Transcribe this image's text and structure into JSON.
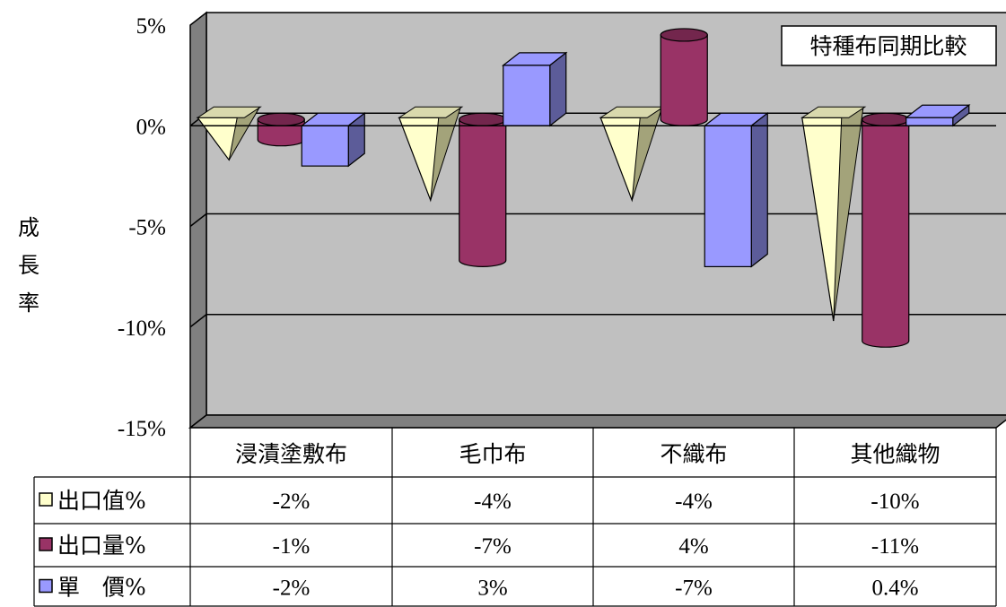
{
  "chart_data": {
    "type": "bar",
    "title": "特種布同期比較",
    "ylabel": "成長率",
    "ylabel_chars": [
      "成",
      "長",
      "率"
    ],
    "ylim": [
      -15,
      5
    ],
    "yticks": [
      5,
      0,
      -5,
      -10,
      -15
    ],
    "ytick_labels": [
      "5%",
      "0%",
      "-5%",
      "-10%",
      "-15%"
    ],
    "gridlines": true,
    "legend_placement": "data-table",
    "categories": [
      "浸漬塗敷布",
      "毛巾布",
      "不織布",
      "其他織物"
    ],
    "series": [
      {
        "name": "出口值%",
        "legend_label": "出口值%",
        "shape": "cone",
        "color": "#ffffcc",
        "values": [
          -1.7,
          -3.7,
          -3.7,
          -9.7
        ],
        "labels": [
          "-2%",
          "-4%",
          "-4%",
          "-10%"
        ]
      },
      {
        "name": "出口量%",
        "legend_label": "出口量%",
        "shape": "cylinder",
        "color": "#993366",
        "values": [
          -1.0,
          -7.0,
          4.2,
          -11.0
        ],
        "labels": [
          "-1%",
          "-7%",
          "4%",
          "-11%"
        ]
      },
      {
        "name": "單價%",
        "legend_label": "單　價%",
        "shape": "box",
        "color": "#9999ff",
        "values": [
          -2.0,
          3.0,
          -7.0,
          0.4
        ],
        "labels": [
          "-2%",
          "3%",
          "-7%",
          "0.4%"
        ]
      }
    ],
    "colors": {
      "wall": "#c0c0c0",
      "floor": "#808080",
      "outline": "#000000"
    }
  }
}
